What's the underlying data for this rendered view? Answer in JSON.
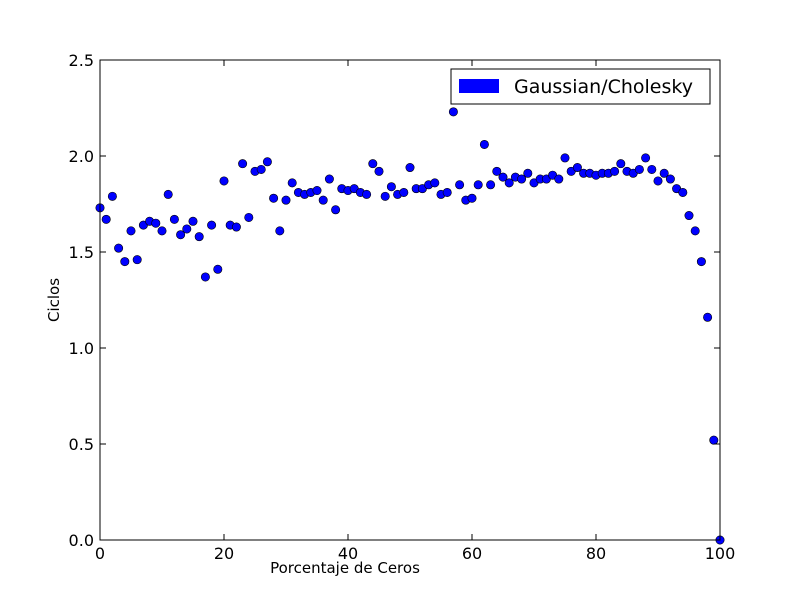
{
  "chart_data": {
    "type": "scatter",
    "xlabel": "Porcentaje de Ceros",
    "ylabel": "Ciclos",
    "xlim": [
      0,
      100
    ],
    "ylim": [
      0,
      2.5
    ],
    "xticks": [
      0,
      20,
      40,
      60,
      80,
      100
    ],
    "xtick_labels": [
      "0",
      "20",
      "40",
      "60",
      "80",
      "100"
    ],
    "yticks": [
      0,
      0.5,
      1,
      1.5,
      2,
      2.5
    ],
    "ytick_labels": [
      "0.0",
      "0.5",
      "1.0",
      "1.5",
      "2.0",
      "2.5"
    ],
    "grid": false,
    "legend_position": "top-right",
    "series": [
      {
        "name": "Gaussian/Cholesky",
        "color": "#0000ff",
        "x": [
          0,
          1,
          2,
          3,
          4,
          5,
          6,
          7,
          8,
          9,
          10,
          11,
          12,
          13,
          14,
          15,
          16,
          17,
          18,
          19,
          20,
          21,
          22,
          23,
          24,
          25,
          26,
          27,
          28,
          29,
          30,
          31,
          32,
          33,
          34,
          35,
          36,
          37,
          38,
          39,
          40,
          41,
          42,
          43,
          44,
          45,
          46,
          47,
          48,
          49,
          50,
          51,
          52,
          53,
          54,
          55,
          56,
          57,
          58,
          59,
          60,
          61,
          62,
          63,
          64,
          65,
          66,
          67,
          68,
          69,
          70,
          71,
          72,
          73,
          74,
          75,
          76,
          77,
          78,
          79,
          80,
          81,
          82,
          83,
          84,
          85,
          86,
          87,
          88,
          89,
          90,
          91,
          92,
          93,
          94,
          95,
          96,
          97,
          98,
          99,
          100
        ],
        "y": [
          1.73,
          1.67,
          1.79,
          1.52,
          1.45,
          1.61,
          1.46,
          1.64,
          1.66,
          1.65,
          1.61,
          1.8,
          1.67,
          1.59,
          1.62,
          1.66,
          1.58,
          1.37,
          1.64,
          1.41,
          1.87,
          1.64,
          1.63,
          1.96,
          1.68,
          1.92,
          1.93,
          1.97,
          1.78,
          1.61,
          1.77,
          1.86,
          1.81,
          1.8,
          1.81,
          1.82,
          1.77,
          1.88,
          1.72,
          1.83,
          1.82,
          1.83,
          1.81,
          1.8,
          1.96,
          1.92,
          1.79,
          1.84,
          1.8,
          1.81,
          1.94,
          1.83,
          1.83,
          1.85,
          1.86,
          1.8,
          1.81,
          2.23,
          1.85,
          1.77,
          1.78,
          1.85,
          2.06,
          1.85,
          1.92,
          1.89,
          1.86,
          1.89,
          1.88,
          1.91,
          1.86,
          1.88,
          1.88,
          1.9,
          1.88,
          1.99,
          1.92,
          1.94,
          1.91,
          1.91,
          1.9,
          1.91,
          1.91,
          1.92,
          1.96,
          1.92,
          1.91,
          1.93,
          1.99,
          1.93,
          1.87,
          1.91,
          1.88,
          1.83,
          1.81,
          1.69,
          1.61,
          1.45,
          1.16,
          0.52,
          0.0
        ]
      }
    ]
  }
}
